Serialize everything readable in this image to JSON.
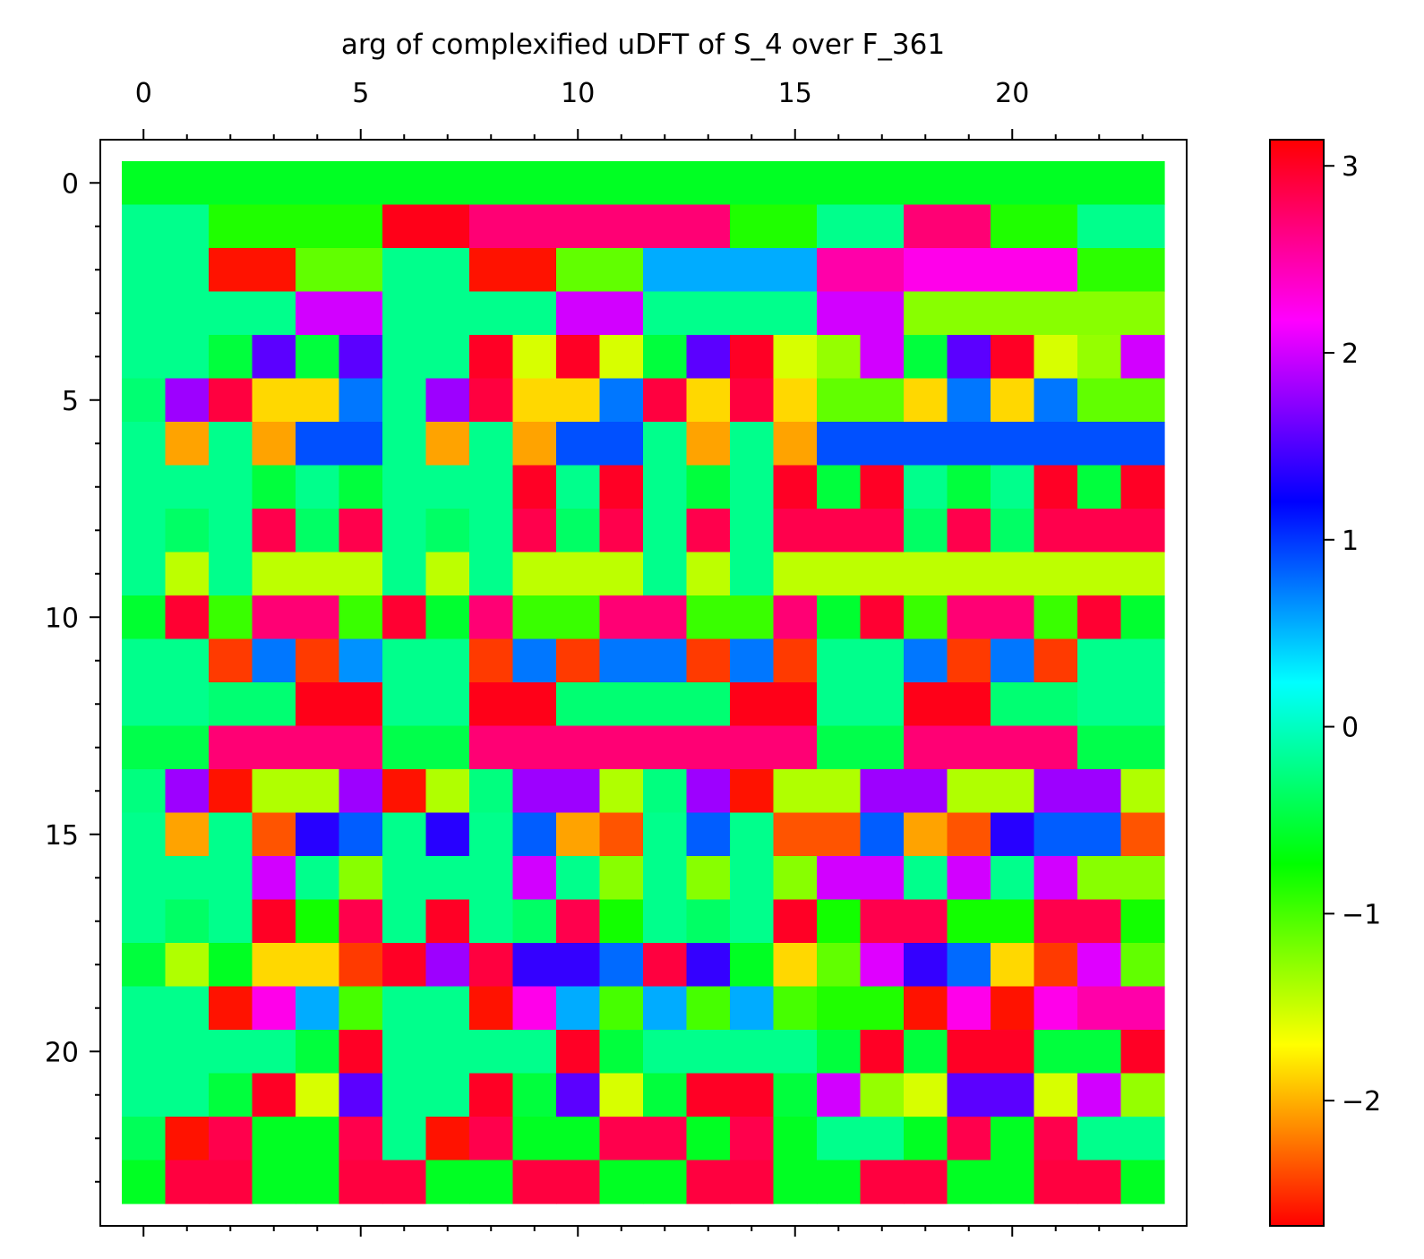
{
  "chart_data": {
    "type": "heatmap",
    "title": "arg of complexified uDFT of S_4 over F_361",
    "xlabel": "",
    "ylabel": "",
    "rows": 24,
    "cols": 24,
    "xlim": [
      -0.5,
      23.5
    ],
    "ylim": [
      23.5,
      -0.5
    ],
    "x_ticks": [
      0,
      5,
      10,
      15,
      20
    ],
    "x_tick_labels": [
      "0",
      "5",
      "10",
      "15",
      "20"
    ],
    "y_ticks": [
      0,
      5,
      10,
      15,
      20
    ],
    "y_tick_labels": [
      "0",
      "5",
      "10",
      "15",
      "20"
    ],
    "x_axis_position": "top",
    "grid": false,
    "colormap": "hsv",
    "color_range": [
      -2.67,
      3.14
    ],
    "colorbar": {
      "ticks": [
        -2,
        -1,
        0,
        1,
        2,
        3
      ],
      "tick_labels": [
        "−2",
        "−1",
        "0",
        "1",
        "2",
        "3"
      ]
    },
    "values": [
      [
        -0.6,
        -0.6,
        -0.6,
        -0.6,
        -0.6,
        -0.6,
        -0.6,
        -0.6,
        -0.6,
        -0.6,
        -0.6,
        -0.6,
        -0.6,
        -0.6,
        -0.6,
        -0.6,
        -0.6,
        -0.6,
        -0.6,
        -0.6,
        -0.6,
        -0.6,
        -0.6,
        -0.6
      ],
      [
        -0.2,
        -0.2,
        -0.85,
        -0.85,
        -0.85,
        -0.85,
        3.05,
        3.05,
        2.7,
        2.7,
        2.7,
        2.7,
        2.7,
        2.7,
        -0.85,
        -0.85,
        -0.2,
        -0.2,
        2.7,
        2.7,
        -0.85,
        -0.85,
        -0.2,
        -0.2
      ],
      [
        -0.2,
        -0.2,
        -2.6,
        -2.6,
        -1.1,
        -1.1,
        -0.2,
        -0.2,
        -2.6,
        -2.6,
        -1.1,
        -1.1,
        0.55,
        0.55,
        0.55,
        0.55,
        2.5,
        2.5,
        2.25,
        2.25,
        2.25,
        2.25,
        -0.9,
        -0.9
      ],
      [
        -0.2,
        -0.2,
        -0.2,
        -0.2,
        2.0,
        2.0,
        -0.2,
        -0.2,
        -0.2,
        -0.2,
        2.0,
        2.0,
        -0.2,
        -0.2,
        -0.2,
        -0.2,
        2.0,
        2.0,
        -1.25,
        -1.25,
        -1.25,
        -1.25,
        -1.25,
        -1.25
      ],
      [
        -0.2,
        -0.2,
        -0.5,
        1.55,
        -0.5,
        1.55,
        -0.2,
        -0.2,
        3.0,
        -1.55,
        3.0,
        -1.55,
        -0.5,
        1.55,
        3.0,
        -1.55,
        -1.3,
        2.0,
        -0.5,
        1.55,
        3.0,
        -1.55,
        -1.3,
        2.0
      ],
      [
        -0.3,
        1.8,
        2.9,
        -1.85,
        -1.85,
        0.75,
        -0.2,
        1.8,
        2.9,
        -1.85,
        -1.85,
        0.75,
        2.9,
        -1.85,
        2.9,
        -1.85,
        -1.1,
        -1.1,
        -1.85,
        0.75,
        -1.85,
        0.75,
        -1.1,
        -1.1
      ],
      [
        -0.2,
        -2.05,
        -0.2,
        -2.05,
        0.9,
        0.9,
        -0.2,
        -2.05,
        -0.2,
        -2.05,
        0.9,
        0.9,
        -0.2,
        -2.05,
        -0.2,
        -2.05,
        0.9,
        0.9,
        0.9,
        0.9,
        0.9,
        0.9,
        0.9,
        0.9
      ],
      [
        -0.2,
        -0.2,
        -0.2,
        -0.5,
        -0.2,
        -0.5,
        -0.2,
        -0.2,
        -0.2,
        3.0,
        -0.2,
        3.0,
        -0.2,
        -0.5,
        -0.2,
        3.0,
        -0.5,
        3.0,
        -0.2,
        -0.5,
        -0.2,
        3.0,
        -0.5,
        3.0
      ],
      [
        -0.2,
        -0.35,
        -0.2,
        2.85,
        -0.35,
        2.85,
        -0.2,
        -0.35,
        -0.2,
        2.85,
        -0.35,
        2.85,
        -0.2,
        2.85,
        -0.2,
        2.85,
        2.85,
        2.85,
        -0.35,
        2.85,
        -0.35,
        2.85,
        2.85,
        2.85
      ],
      [
        -0.2,
        -1.45,
        -0.2,
        -1.45,
        -1.45,
        -1.45,
        -0.2,
        -1.45,
        -0.2,
        -1.45,
        -1.45,
        -1.45,
        -0.2,
        -1.45,
        -0.2,
        -1.45,
        -1.45,
        -1.45,
        -1.45,
        -1.45,
        -1.45,
        -1.45,
        -1.45,
        -1.45
      ],
      [
        -0.55,
        2.95,
        -0.95,
        2.7,
        2.7,
        -0.95,
        2.95,
        -0.55,
        2.7,
        -0.95,
        -0.95,
        2.7,
        2.7,
        -0.95,
        -0.95,
        2.7,
        -0.55,
        2.95,
        -0.95,
        2.7,
        2.7,
        -0.95,
        2.95,
        -0.55
      ],
      [
        -0.2,
        -0.2,
        -2.45,
        0.75,
        -2.45,
        0.65,
        -0.2,
        -0.2,
        -2.45,
        0.75,
        -2.45,
        0.75,
        0.75,
        -2.45,
        0.75,
        -2.45,
        -0.2,
        -0.2,
        0.75,
        -2.45,
        0.75,
        -2.45,
        -0.2,
        -0.2
      ],
      [
        -0.2,
        -0.2,
        -0.3,
        -0.3,
        3.05,
        3.05,
        -0.2,
        -0.2,
        3.05,
        3.05,
        -0.3,
        -0.3,
        -0.3,
        -0.3,
        3.05,
        3.05,
        -0.2,
        -0.2,
        3.05,
        3.05,
        -0.3,
        -0.3,
        -0.2,
        -0.2
      ],
      [
        -0.45,
        -0.45,
        2.7,
        2.7,
        2.7,
        2.7,
        -0.45,
        -0.45,
        2.7,
        2.7,
        2.7,
        2.7,
        2.7,
        2.7,
        2.7,
        2.7,
        -0.45,
        -0.45,
        2.7,
        2.7,
        2.7,
        2.7,
        -0.45,
        -0.45
      ],
      [
        -0.25,
        1.8,
        -2.6,
        -1.4,
        -1.4,
        1.8,
        -2.6,
        -1.4,
        -0.25,
        1.8,
        1.8,
        -1.4,
        -0.25,
        1.8,
        -2.6,
        -1.4,
        -1.4,
        1.8,
        1.8,
        -1.4,
        -1.4,
        1.8,
        1.8,
        -1.4
      ],
      [
        -0.2,
        -2.05,
        -0.2,
        -2.35,
        1.35,
        0.85,
        -0.2,
        1.35,
        -0.2,
        0.85,
        -2.05,
        -2.35,
        -0.2,
        0.85,
        -0.2,
        -2.35,
        -2.35,
        0.85,
        -2.05,
        -2.35,
        1.35,
        0.85,
        0.85,
        -2.35
      ],
      [
        -0.2,
        -0.2,
        -0.2,
        2.0,
        -0.2,
        -1.25,
        -0.2,
        -0.2,
        -0.2,
        2.0,
        -0.2,
        -1.25,
        -0.2,
        -1.25,
        -0.2,
        -1.25,
        2.0,
        2.0,
        -0.2,
        2.0,
        -0.2,
        2.0,
        -1.25,
        -1.25
      ],
      [
        -0.2,
        -0.35,
        -0.2,
        3.0,
        -0.8,
        2.85,
        -0.2,
        3.0,
        -0.2,
        -0.35,
        2.85,
        -0.8,
        -0.2,
        -0.35,
        -0.2,
        3.0,
        -0.8,
        2.85,
        2.85,
        -0.8,
        -0.8,
        2.85,
        2.85,
        -0.8
      ],
      [
        -0.5,
        -1.4,
        -0.6,
        -1.85,
        -1.85,
        -2.45,
        3.0,
        1.8,
        2.9,
        1.4,
        1.4,
        0.8,
        2.9,
        1.4,
        -0.6,
        -1.85,
        -1.1,
        2.05,
        1.4,
        0.8,
        -1.85,
        -2.45,
        2.05,
        -1.1
      ],
      [
        -0.2,
        -0.2,
        -2.6,
        2.25,
        0.55,
        -1.0,
        -0.2,
        -0.2,
        -2.6,
        2.25,
        0.55,
        -1.0,
        0.55,
        -1.0,
        0.55,
        -1.0,
        -0.85,
        -0.85,
        -2.6,
        2.25,
        -2.6,
        2.25,
        2.5,
        2.5
      ],
      [
        -0.2,
        -0.2,
        -0.2,
        -0.2,
        -0.5,
        3.0,
        -0.2,
        -0.2,
        -0.2,
        -0.2,
        3.0,
        -0.5,
        -0.2,
        -0.2,
        -0.2,
        -0.2,
        -0.5,
        3.0,
        -0.5,
        3.0,
        3.0,
        -0.5,
        -0.5,
        3.0
      ],
      [
        -0.2,
        -0.2,
        -0.5,
        3.0,
        -1.55,
        1.55,
        -0.2,
        -0.2,
        3.0,
        -0.5,
        1.55,
        -1.55,
        -0.5,
        3.0,
        3.0,
        -0.5,
        2.0,
        -1.3,
        -1.55,
        1.55,
        1.55,
        -1.55,
        2.0,
        -1.3
      ],
      [
        -0.4,
        -2.6,
        2.85,
        -0.6,
        -0.6,
        2.85,
        -0.2,
        -2.6,
        2.85,
        -0.6,
        -0.6,
        2.85,
        2.85,
        -0.6,
        2.85,
        -0.6,
        -0.2,
        -0.2,
        -0.6,
        2.85,
        -0.6,
        2.85,
        -0.2,
        -0.2
      ],
      [
        -0.6,
        2.9,
        2.9,
        -0.6,
        -0.6,
        2.9,
        2.9,
        -0.6,
        -0.6,
        2.9,
        2.9,
        -0.6,
        -0.6,
        2.9,
        2.9,
        -0.6,
        -0.6,
        2.9,
        2.9,
        -0.6,
        -0.6,
        2.9,
        2.9,
        -0.6
      ]
    ]
  }
}
